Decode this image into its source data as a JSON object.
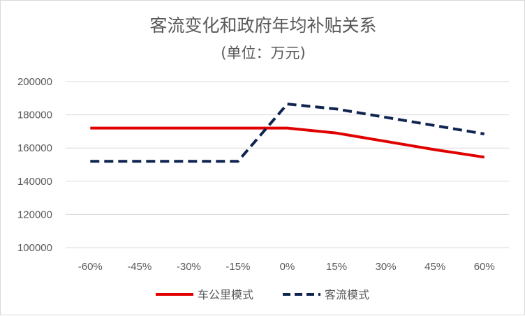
{
  "chart_data": {
    "type": "line",
    "title": "客流变化和政府年均补贴关系",
    "subtitle": "(单位：万元)",
    "xlabel": "",
    "ylabel": "",
    "categories": [
      "-60%",
      "-45%",
      "-30%",
      "-15%",
      "0%",
      "15%",
      "30%",
      "45%",
      "60%"
    ],
    "ylim": [
      100000,
      200000
    ],
    "yticks": [
      "200000",
      "180000",
      "160000",
      "140000",
      "120000",
      "100000"
    ],
    "grid": true,
    "legend_position": "bottom",
    "series": [
      {
        "name": "车公里模式",
        "color": "#e00000",
        "dash": "solid",
        "values": [
          172000,
          172000,
          172000,
          172000,
          172000,
          169000,
          164000,
          159000,
          154500
        ]
      },
      {
        "name": "客流模式",
        "color": "#0f2550",
        "dash": "dashed",
        "values": [
          152000,
          152000,
          152000,
          152000,
          186500,
          183500,
          178500,
          173500,
          168500
        ]
      }
    ]
  }
}
